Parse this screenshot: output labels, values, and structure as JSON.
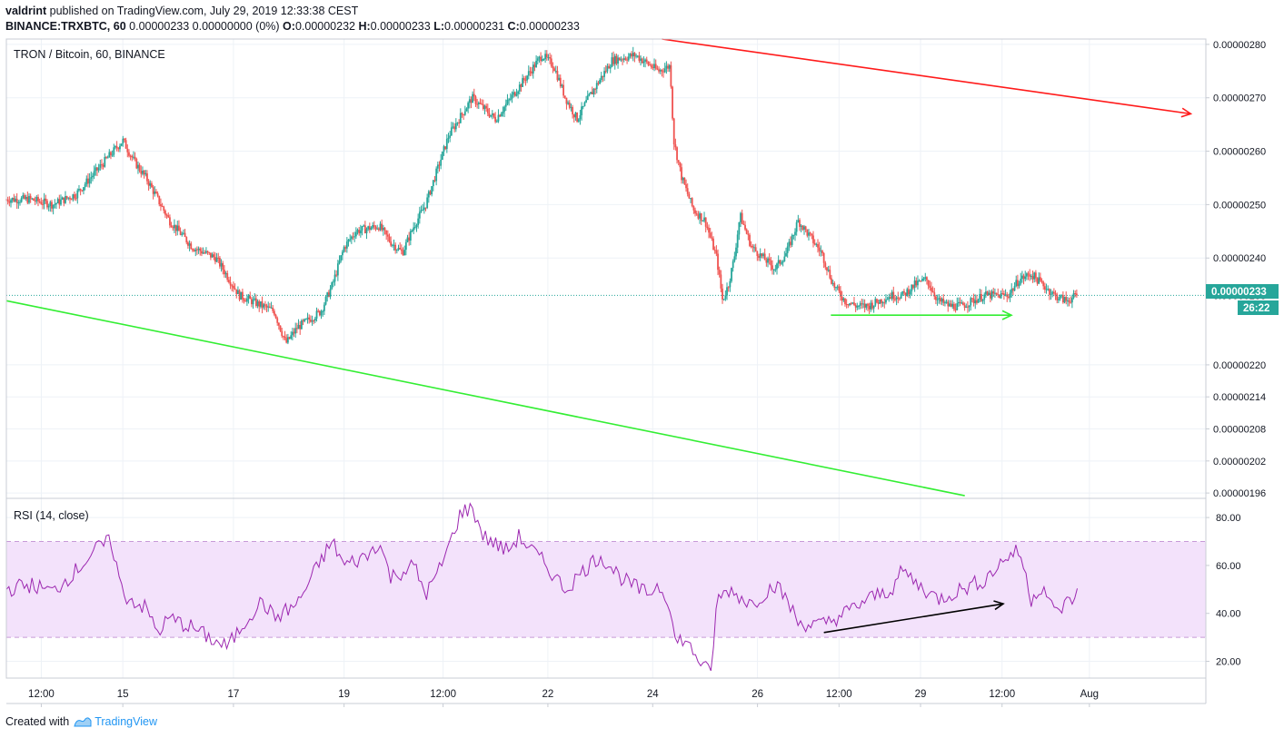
{
  "header": {
    "author": "valdrint",
    "published_text": "published on TradingView.com, July 29, 2019 12:33:38 CEST",
    "symbol": "BINANCE:TRXBTC, 60",
    "quote": "0.00000233 0.00000000 (0%)",
    "o_label": "O:",
    "o_value": "0.00000232",
    "h_label": "H:",
    "h_value": "0.00000233",
    "l_label": "L:",
    "l_value": "0.00000231",
    "c_label": "C:",
    "c_value": "0.00000233"
  },
  "footer": {
    "created_with": "Created with",
    "brand": "TradingView"
  },
  "colors": {
    "up": "#26a69a",
    "down": "#ef5350",
    "rsi_line": "#9c27b0",
    "rsi_band": "#f3e2fb",
    "grid": "#eef2f7",
    "red_line": "#ff1a1a",
    "green_line": "#33ee33",
    "last_price_tag": "#26a69a"
  },
  "chart_data": [
    {
      "type": "candlestick",
      "title": "TRON / Bitcoin, 60, BINANCE",
      "ylim": [
        1.95e-06,
        2.81e-06
      ],
      "y_ticks": [
        "0.00000280",
        "0.00000270",
        "0.00000260",
        "0.00000250",
        "0.00000240",
        "0.00000233",
        "0.00000220",
        "0.00000214",
        "0.00000208",
        "0.00000202",
        "0.00000196"
      ],
      "x_ticks": [
        "12:00",
        "15",
        "17",
        "19",
        "12:00",
        "22",
        "24",
        "26",
        "12:00",
        "29",
        "12:00",
        "Aug"
      ],
      "last_price": "0.00000233",
      "countdown": "26:22",
      "price_path": [
        [
          0,
          251
        ],
        [
          2,
          251
        ],
        [
          4,
          250
        ],
        [
          6,
          252
        ],
        [
          8,
          257
        ],
        [
          10,
          262
        ],
        [
          11,
          258
        ],
        [
          12,
          255
        ],
        [
          14,
          247
        ],
        [
          16,
          242
        ],
        [
          18,
          240
        ],
        [
          20,
          233
        ],
        [
          22,
          231
        ],
        [
          23,
          230
        ],
        [
          24,
          224
        ],
        [
          25,
          227
        ],
        [
          27,
          230
        ],
        [
          28,
          235
        ],
        [
          29,
          242
        ],
        [
          30,
          245
        ],
        [
          32,
          246
        ],
        [
          33,
          243
        ],
        [
          34,
          241
        ],
        [
          35,
          246
        ],
        [
          36,
          250
        ],
        [
          38,
          263
        ],
        [
          40,
          270
        ],
        [
          42,
          266
        ],
        [
          44,
          272
        ],
        [
          46,
          278
        ],
        [
          47,
          276
        ],
        [
          48,
          270
        ],
        [
          49,
          266
        ],
        [
          50,
          270
        ],
        [
          52,
          277
        ],
        [
          54,
          278
        ],
        [
          56,
          275
        ],
        [
          57,
          276
        ],
        [
          57.3,
          262
        ],
        [
          58,
          255
        ],
        [
          59,
          249
        ],
        [
          60,
          247
        ],
        [
          61,
          240
        ],
        [
          61.5,
          232
        ],
        [
          62,
          235
        ],
        [
          62.5,
          240
        ],
        [
          63,
          248
        ],
        [
          64,
          242
        ],
        [
          66,
          238
        ],
        [
          67,
          241
        ],
        [
          68,
          247
        ],
        [
          69,
          244
        ],
        [
          70,
          241
        ],
        [
          71,
          235
        ],
        [
          72,
          232
        ],
        [
          73,
          231
        ],
        [
          74,
          231
        ],
        [
          75,
          232
        ],
        [
          76,
          233
        ],
        [
          77,
          233
        ],
        [
          78,
          235
        ],
        [
          79,
          236
        ],
        [
          80,
          232
        ],
        [
          81,
          231
        ],
        [
          82,
          231
        ],
        [
          84,
          233
        ],
        [
          86,
          233
        ],
        [
          87,
          236
        ],
        [
          88,
          237
        ],
        [
          89,
          235
        ],
        [
          90,
          233
        ],
        [
          91,
          232
        ],
        [
          92,
          233
        ]
      ],
      "annotations": [
        {
          "type": "trendline",
          "color": "red",
          "from": [
            56.3,
            2.81e-06
          ],
          "to": [
            101.7,
            2.67e-06
          ],
          "arrow": true
        },
        {
          "type": "trendline",
          "color": "green",
          "from": [
            0,
            2.32e-06
          ],
          "to": [
            82.3,
            1.955e-06
          ],
          "arrow": false
        },
        {
          "type": "trendline",
          "color": "green",
          "from": [
            70.8,
            2.293e-06
          ],
          "to": [
            86.3,
            2.293e-06
          ],
          "arrow": true
        }
      ]
    },
    {
      "type": "line",
      "title": "RSI (14, close)",
      "ylim": [
        13,
        88
      ],
      "y_ticks": [
        "80.00",
        "60.00",
        "40.00",
        "20.00"
      ],
      "band": [
        30,
        70
      ],
      "rsi_path": [
        [
          0,
          50
        ],
        [
          2,
          52
        ],
        [
          4,
          49
        ],
        [
          6,
          58
        ],
        [
          8,
          68
        ],
        [
          9,
          70
        ],
        [
          10,
          48
        ],
        [
          12,
          42
        ],
        [
          13,
          32
        ],
        [
          14,
          38
        ],
        [
          16,
          34
        ],
        [
          18,
          28
        ],
        [
          19,
          26
        ],
        [
          21,
          40
        ],
        [
          22,
          45
        ],
        [
          23,
          38
        ],
        [
          25,
          44
        ],
        [
          27,
          62
        ],
        [
          28,
          70
        ],
        [
          29,
          60
        ],
        [
          31,
          64
        ],
        [
          32,
          70
        ],
        [
          33,
          55
        ],
        [
          35,
          60
        ],
        [
          36,
          48
        ],
        [
          37,
          56
        ],
        [
          38,
          68
        ],
        [
          39,
          82
        ],
        [
          40,
          84
        ],
        [
          41,
          72
        ],
        [
          43,
          66
        ],
        [
          44,
          72
        ],
        [
          46,
          62
        ],
        [
          48,
          50
        ],
        [
          50,
          60
        ],
        [
          51,
          64
        ],
        [
          53,
          54
        ],
        [
          55,
          48
        ],
        [
          56,
          52
        ],
        [
          57,
          44
        ],
        [
          57.5,
          26
        ],
        [
          58,
          30
        ],
        [
          59,
          24
        ],
        [
          60,
          17
        ],
        [
          60.5,
          15
        ],
        [
          61,
          45
        ],
        [
          62,
          50
        ],
        [
          64,
          44
        ],
        [
          66,
          52
        ],
        [
          67,
          46
        ],
        [
          68,
          36
        ],
        [
          70,
          35
        ],
        [
          72,
          40
        ],
        [
          74,
          46
        ],
        [
          76,
          50
        ],
        [
          77,
          58
        ],
        [
          78,
          53
        ],
        [
          80,
          46
        ],
        [
          82,
          50
        ],
        [
          84,
          54
        ],
        [
          86,
          64
        ],
        [
          87,
          66
        ],
        [
          88,
          46
        ],
        [
          89,
          52
        ],
        [
          90,
          40
        ],
        [
          92,
          48
        ]
      ],
      "annotations": [
        {
          "type": "trendline",
          "color": "black",
          "from": [
            70.2,
            32
          ],
          "to": [
            85.6,
            44
          ],
          "arrow": true
        }
      ]
    }
  ]
}
